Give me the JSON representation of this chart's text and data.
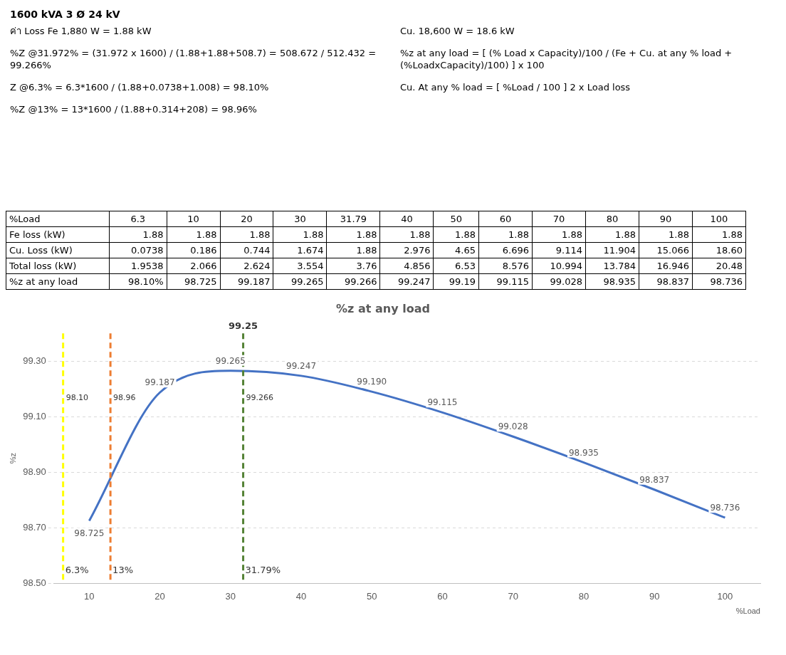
{
  "chart_data": [
    {
      "type": "other",
      "title": "1600 kVA 3 Ø 24 kV",
      "annotations": [
        "ค่า Loss Fe 1,880 W = 1.88 kW",
        "Cu. 18,600 W = 18.6 kW",
        "%Z @31.972% = (31.972 x 1600) / (1.88+1.88+508.7) = 508.672 / 512.432 = 99.266%",
        "%z at any load = [ (% Load x Capacity)/100 / (Fe + Cu. at any % load + (%LoadxCapacity)/100) ] x 100",
        "Z @6.3% = 6.3*1600 / (1.88+0.0738+1.008) = 98.10%",
        "Cu. At any % load = [ %Load / 100 ] 2 x Load loss",
        "%Z @13% = 13*1600 / (1.88+0.314+208) = 98.96%"
      ]
    },
    {
      "type": "other",
      "xlabel": "%Load",
      "categories": [
        "6.3",
        "10",
        "20",
        "30",
        "31.79",
        "40",
        "50",
        "60",
        "70",
        "80",
        "90",
        "100"
      ],
      "series": [
        {
          "name": "Fe loss (kW)",
          "color": "#000000",
          "values": [
            1.88,
            1.88,
            1.88,
            1.88,
            1.88,
            1.88,
            1.88,
            1.88,
            1.88,
            1.88,
            1.88,
            1.88
          ],
          "value_labels": [
            "1.88",
            "1.88",
            "1.88",
            "1.88",
            "1.88",
            "1.88",
            "1.88",
            "1.88",
            "1.88",
            "1.88",
            "1.88",
            "1.88"
          ]
        },
        {
          "name": "Cu. Loss (kW)",
          "color": "#000000",
          "values": [
            0.0738,
            0.186,
            0.744,
            1.674,
            1.88,
            2.976,
            4.65,
            6.696,
            9.114,
            11.904,
            15.066,
            18.6
          ],
          "value_labels": [
            "0.0738",
            "0.186",
            "0.744",
            "1.674",
            "1.88",
            "2.976",
            "4.65",
            "6.696",
            "9.114",
            "11.904",
            "15.066",
            "18.60"
          ]
        },
        {
          "name": "Total loss (kW)",
          "color": "#000000",
          "values": [
            1.9538,
            2.066,
            2.624,
            3.554,
            3.76,
            4.856,
            6.53,
            8.576,
            10.994,
            13.784,
            16.946,
            20.48
          ],
          "value_labels": [
            "1.9538",
            "2.066",
            "2.624",
            "3.554",
            "3.76",
            "4.856",
            "6.53",
            "8.576",
            "10.994",
            "13.784",
            "16.946",
            "20.48"
          ]
        },
        {
          "name": "%z at any load",
          "color": "#000000",
          "values": [
            98.1,
            98.725,
            99.187,
            99.265,
            99.266,
            99.247,
            99.19,
            99.115,
            99.028,
            98.935,
            98.837,
            98.736
          ],
          "value_labels": [
            "98.10%",
            "98.725",
            "99.187",
            "99.265",
            "99.266",
            "99.247",
            "99.19",
            "99.115",
            "99.028",
            "98.935",
            "98.837",
            "98.736"
          ]
        }
      ]
    },
    {
      "type": "line",
      "title": "%z at any load",
      "xlabel": "%Load",
      "ylabel": "%z",
      "x": [
        10,
        20,
        30,
        40,
        50,
        60,
        70,
        80,
        90,
        100
      ],
      "series": [
        {
          "color": "#4472c4",
          "values": [
            98.725,
            99.187,
            99.265,
            99.247,
            99.19,
            99.115,
            99.028,
            98.935,
            98.837,
            98.736
          ],
          "value_labels": [
            "98.725",
            "99.187",
            "99.265",
            "99.247",
            "99.190",
            "99.115",
            "99.028",
            "98.935",
            "98.837",
            "98.736"
          ]
        }
      ],
      "xlim": [
        5,
        105
      ],
      "xticks": [
        10,
        20,
        30,
        40,
        50,
        60,
        70,
        80,
        90,
        100
      ],
      "ylim": [
        98.5,
        99.4
      ],
      "yticks": [
        {
          "value": 98.5,
          "label": "98.50"
        },
        {
          "value": 98.7,
          "label": "98.70"
        },
        {
          "value": 98.9,
          "label": "98.90"
        },
        {
          "value": 99.1,
          "label": "99.10"
        },
        {
          "value": 99.3,
          "label": "99.30"
        }
      ],
      "grid": "y",
      "legend": false,
      "marker": "none",
      "ref_lines": [
        {
          "axis": "x",
          "value": 6.3,
          "label": "6.3%",
          "color": "#ffff00",
          "line_style": "dashed"
        },
        {
          "axis": "x",
          "value": 13,
          "label": "13%",
          "color": "#ed7d31",
          "line_style": "dashed"
        },
        {
          "axis": "x",
          "value": 31.79,
          "label": "31.79%",
          "color": "#548235",
          "line_style": "dashed"
        }
      ],
      "annotations": [
        {
          "text": "98.10",
          "x": 6.3,
          "y": 99.16
        },
        {
          "text": "98.96",
          "x": 13,
          "y": 99.16
        },
        {
          "text": "99.266",
          "x": 31.79,
          "y": 99.16
        },
        {
          "text": "99.25",
          "x": 31.79,
          "y": 99.4
        }
      ]
    }
  ]
}
